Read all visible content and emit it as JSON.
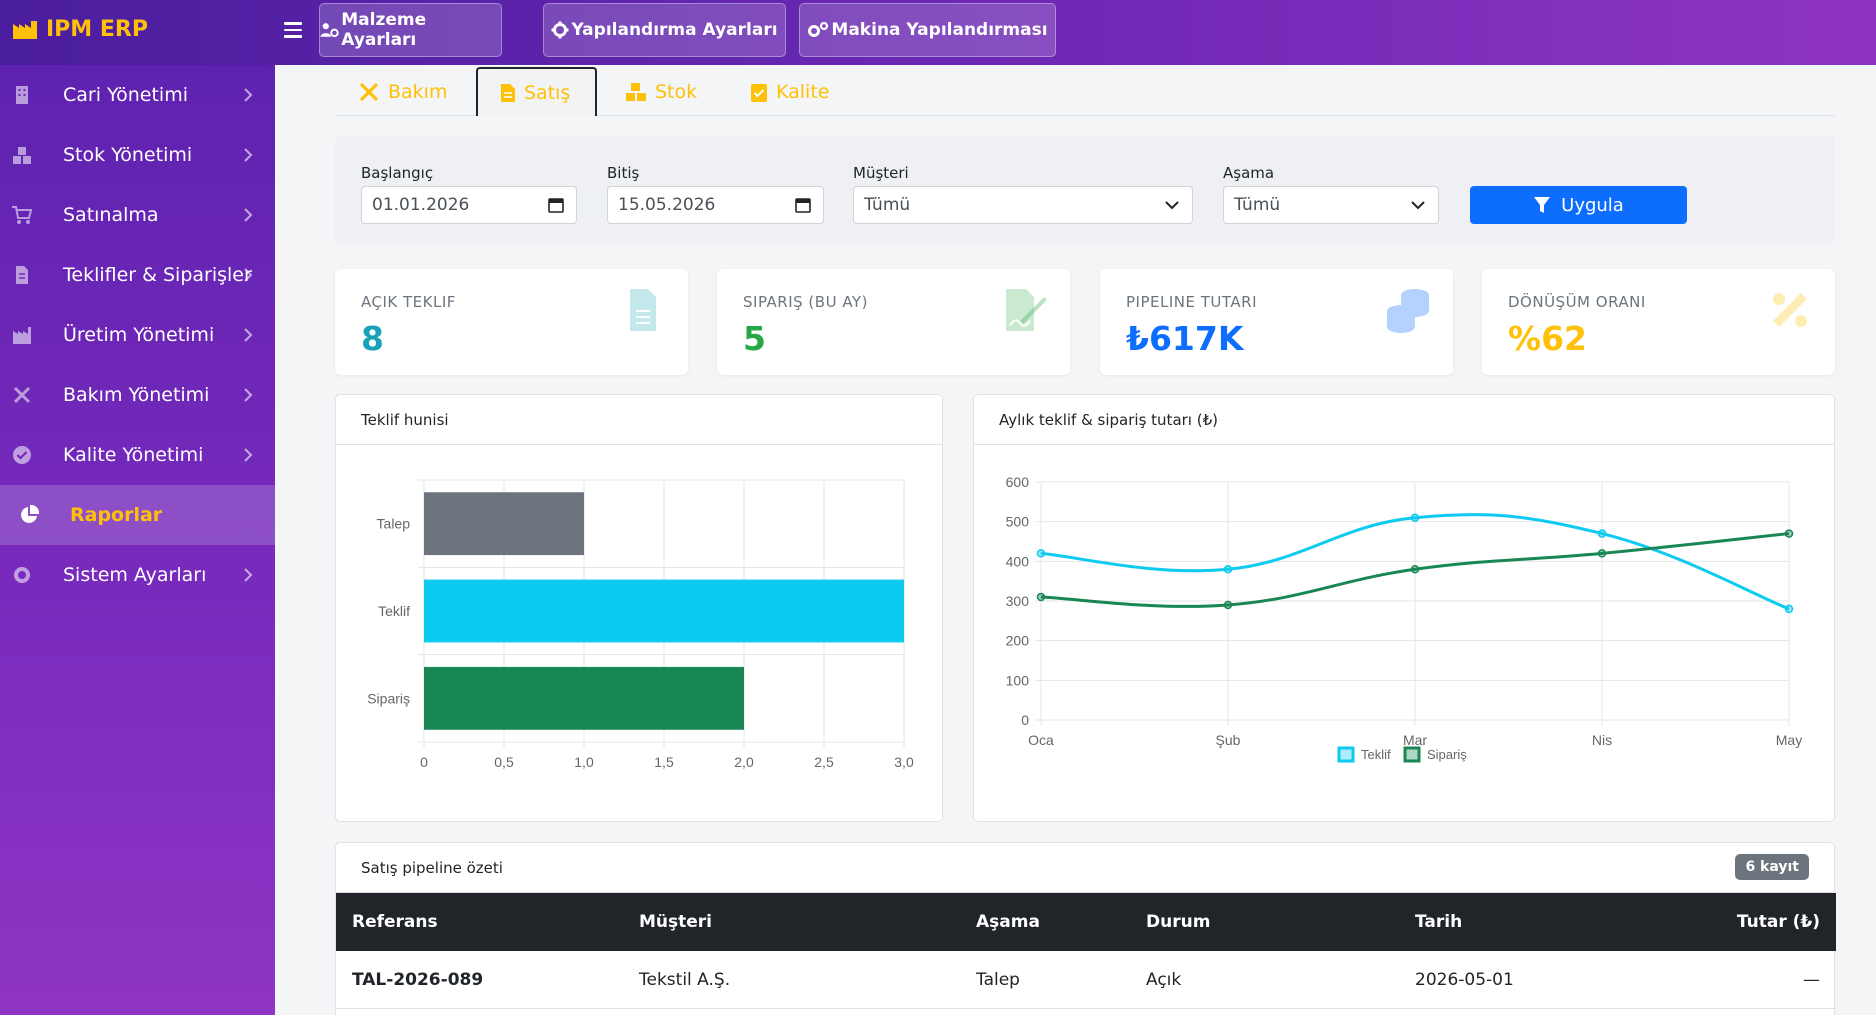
{
  "app": {
    "brand": "IPM ERP"
  },
  "topnav": [
    {
      "label": "Malzeme Ayarları",
      "icon": "users-cog-icon"
    },
    {
      "label": "Yapılandırma Ayarları",
      "icon": "gear-icon"
    },
    {
      "label": "Makina Yapılandırması",
      "icon": "gears-icon"
    }
  ],
  "sidebar": {
    "items": [
      {
        "label": "Cari Yönetimi",
        "icon": "building-icon"
      },
      {
        "label": "Stok Yönetimi",
        "icon": "boxes-icon"
      },
      {
        "label": "Satınalma",
        "icon": "cart-icon"
      },
      {
        "label": "Teklifler & Siparişler",
        "icon": "invoice-icon"
      },
      {
        "label": "Üretim Yönetimi",
        "icon": "industry-icon"
      },
      {
        "label": "Bakım Yönetimi",
        "icon": "tools-icon"
      },
      {
        "label": "Kalite Yönetimi",
        "icon": "check-circle-icon"
      },
      {
        "label": "Raporlar",
        "icon": "pie-chart-icon",
        "active": true
      },
      {
        "label": "Sistem Ayarları",
        "icon": "cog-icon"
      }
    ]
  },
  "tabs": [
    {
      "label": "Bakım",
      "icon": "tools-icon"
    },
    {
      "label": "Satış",
      "icon": "file-icon",
      "active": true
    },
    {
      "label": "Stok",
      "icon": "boxes-icon"
    },
    {
      "label": "Kalite",
      "icon": "clipboard-check-icon"
    }
  ],
  "filters": {
    "start_label": "Başlangıç",
    "start_value": "01.01.2026",
    "end_label": "Bitiş",
    "end_value": "15.05.2026",
    "customer_label": "Müşteri",
    "customer_value": "Tümü",
    "stage_label": "Aşama",
    "stage_value": "Tümü",
    "apply_label": "Uygula"
  },
  "kpis": [
    {
      "label": "AÇIK TEKLIF",
      "value": "8",
      "color": "#17a2b8",
      "icon": "file-alt-icon"
    },
    {
      "label": "SIPARIŞ (BU AY)",
      "value": "5",
      "color": "#28a745",
      "icon": "file-signature-icon"
    },
    {
      "label": "PIPELINE TUTARI",
      "value": "₺617K",
      "color": "#0d6efd",
      "icon": "coins-icon"
    },
    {
      "label": "DÖNÜŞÜM ORANI",
      "value": "%62",
      "color": "#ffc107",
      "icon": "percent-icon"
    }
  ],
  "funnel_panel": {
    "title": "Teklif hunisi"
  },
  "trend_panel": {
    "title": "Aylık teklif & sipariş tutarı (₺)"
  },
  "chart_data": [
    {
      "type": "bar",
      "orientation": "horizontal",
      "categories": [
        "Talep",
        "Teklif",
        "Sipariş"
      ],
      "values": [
        1,
        3,
        2
      ],
      "colors": [
        "#6c757d",
        "#0dcaf0",
        "#198754"
      ],
      "xlim": [
        0,
        3
      ],
      "xticks": [
        "0",
        "0,5",
        "1,0",
        "1,5",
        "2,0",
        "2,5",
        "3,0"
      ],
      "grid": true
    },
    {
      "type": "line",
      "x": [
        "Oca",
        "Şub",
        "Mar",
        "Nis",
        "May"
      ],
      "series": [
        {
          "name": "Teklif",
          "values": [
            420,
            380,
            510,
            470,
            280
          ],
          "color": "#0dcaf0"
        },
        {
          "name": "Sipariş",
          "values": [
            310,
            290,
            380,
            420,
            470
          ],
          "color": "#198754"
        }
      ],
      "ylim": [
        0,
        600
      ],
      "yticks": [
        "0",
        "100",
        "200",
        "300",
        "400",
        "500",
        "600"
      ],
      "legend": "bottom",
      "grid": true
    }
  ],
  "table": {
    "title": "Satış pipeline özeti",
    "badge": "6 kayıt",
    "headers": [
      "Referans",
      "Müşteri",
      "Aşama",
      "Durum",
      "Tarih",
      "Tutar (₺)"
    ],
    "rows": [
      [
        "TAL-2026-089",
        "Tekstil A.Ş.",
        "Talep",
        "Açık",
        "2026-05-01",
        "—"
      ]
    ]
  }
}
